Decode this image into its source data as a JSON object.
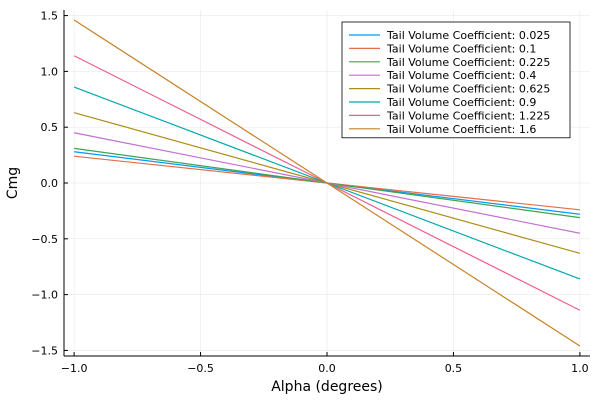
{
  "chart_data": {
    "type": "line",
    "xlabel": "Alpha (degrees)",
    "ylabel": "Cmg",
    "xlim": [
      -1.04,
      1.04
    ],
    "ylim": [
      -1.55,
      1.55
    ],
    "xticks": [
      -1.0,
      -0.5,
      0.0,
      0.5,
      1.0
    ],
    "xtick_labels": [
      "−1.0",
      "−0.5",
      "0.0",
      "0.5",
      "1.0"
    ],
    "yticks": [
      -1.5,
      -1.0,
      -0.5,
      0.0,
      0.5,
      1.0,
      1.5
    ],
    "ytick_labels": [
      "−1.5",
      "−1.0",
      "−0.5",
      "0.0",
      "0.5",
      "1.0",
      "1.5"
    ],
    "grid": true,
    "legend_position": "top-right",
    "series": [
      {
        "name": "Tail Volume Coefficient: 0.025",
        "color": "#009AFA",
        "x": [
          -1,
          0,
          1
        ],
        "y": [
          0.28,
          0.0,
          -0.28
        ]
      },
      {
        "name": "Tail Volume Coefficient: 0.1",
        "color": "#E36F47",
        "x": [
          -1,
          0,
          1
        ],
        "y": [
          0.24,
          0.0,
          -0.24
        ]
      },
      {
        "name": "Tail Volume Coefficient: 0.225",
        "color": "#3EA44E",
        "x": [
          -1,
          0,
          1
        ],
        "y": [
          0.31,
          0.0,
          -0.31
        ]
      },
      {
        "name": "Tail Volume Coefficient: 0.4",
        "color": "#C371D2",
        "x": [
          -1,
          0,
          1
        ],
        "y": [
          0.45,
          0.0,
          -0.45
        ]
      },
      {
        "name": "Tail Volume Coefficient: 0.625",
        "color": "#AC8E18",
        "x": [
          -1,
          0,
          1
        ],
        "y": [
          0.63,
          0.0,
          -0.63
        ]
      },
      {
        "name": "Tail Volume Coefficient: 0.9",
        "color": "#00A9AD",
        "x": [
          -1,
          0,
          1
        ],
        "y": [
          0.86,
          0.0,
          -0.86
        ]
      },
      {
        "name": "Tail Volume Coefficient: 1.225",
        "color": "#ED5E93",
        "x": [
          -1,
          0,
          1
        ],
        "y": [
          1.14,
          0.0,
          -1.14
        ]
      },
      {
        "name": "Tail Volume Coefficient: 1.6",
        "color": "#C68225",
        "x": [
          -1,
          0,
          1
        ],
        "y": [
          1.46,
          0.0,
          -1.46
        ]
      }
    ]
  }
}
